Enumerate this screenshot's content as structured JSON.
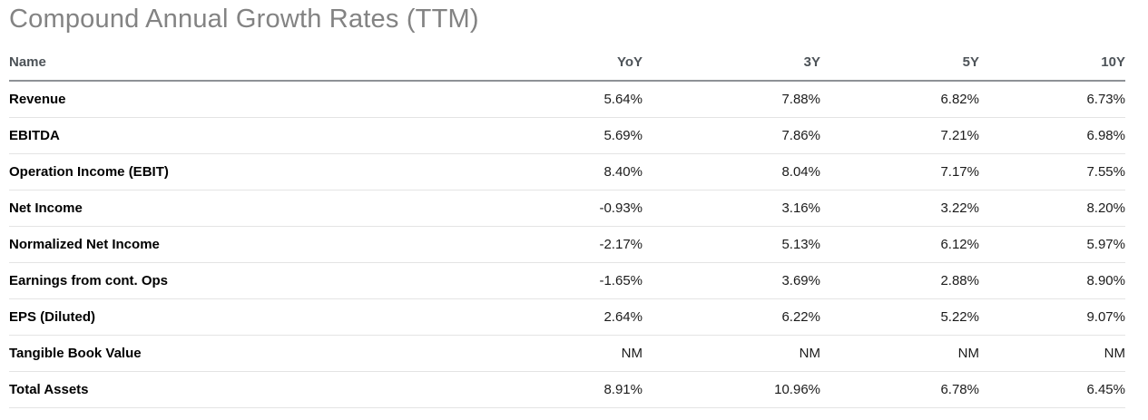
{
  "title": "Compound Annual Growth Rates (TTM)",
  "table": {
    "columns": [
      "Name",
      "YoY",
      "3Y",
      "5Y",
      "10Y"
    ],
    "rows": [
      {
        "name": "Revenue",
        "values": [
          "5.64%",
          "7.88%",
          "6.82%",
          "6.73%"
        ]
      },
      {
        "name": "EBITDA",
        "values": [
          "5.69%",
          "7.86%",
          "7.21%",
          "6.98%"
        ]
      },
      {
        "name": "Operation Income (EBIT)",
        "values": [
          "8.40%",
          "8.04%",
          "7.17%",
          "7.55%"
        ]
      },
      {
        "name": "Net Income",
        "values": [
          "-0.93%",
          "3.16%",
          "3.22%",
          "8.20%"
        ]
      },
      {
        "name": "Normalized Net Income",
        "values": [
          "-2.17%",
          "5.13%",
          "6.12%",
          "5.97%"
        ]
      },
      {
        "name": "Earnings from cont. Ops",
        "values": [
          "-1.65%",
          "3.69%",
          "2.88%",
          "8.90%"
        ]
      },
      {
        "name": "EPS (Diluted)",
        "values": [
          "2.64%",
          "6.22%",
          "5.22%",
          "9.07%"
        ]
      },
      {
        "name": "Tangible Book Value",
        "values": [
          "NM",
          "NM",
          "NM",
          "NM"
        ]
      },
      {
        "name": "Total Assets",
        "values": [
          "8.91%",
          "10.96%",
          "6.78%",
          "6.45%"
        ]
      }
    ]
  }
}
